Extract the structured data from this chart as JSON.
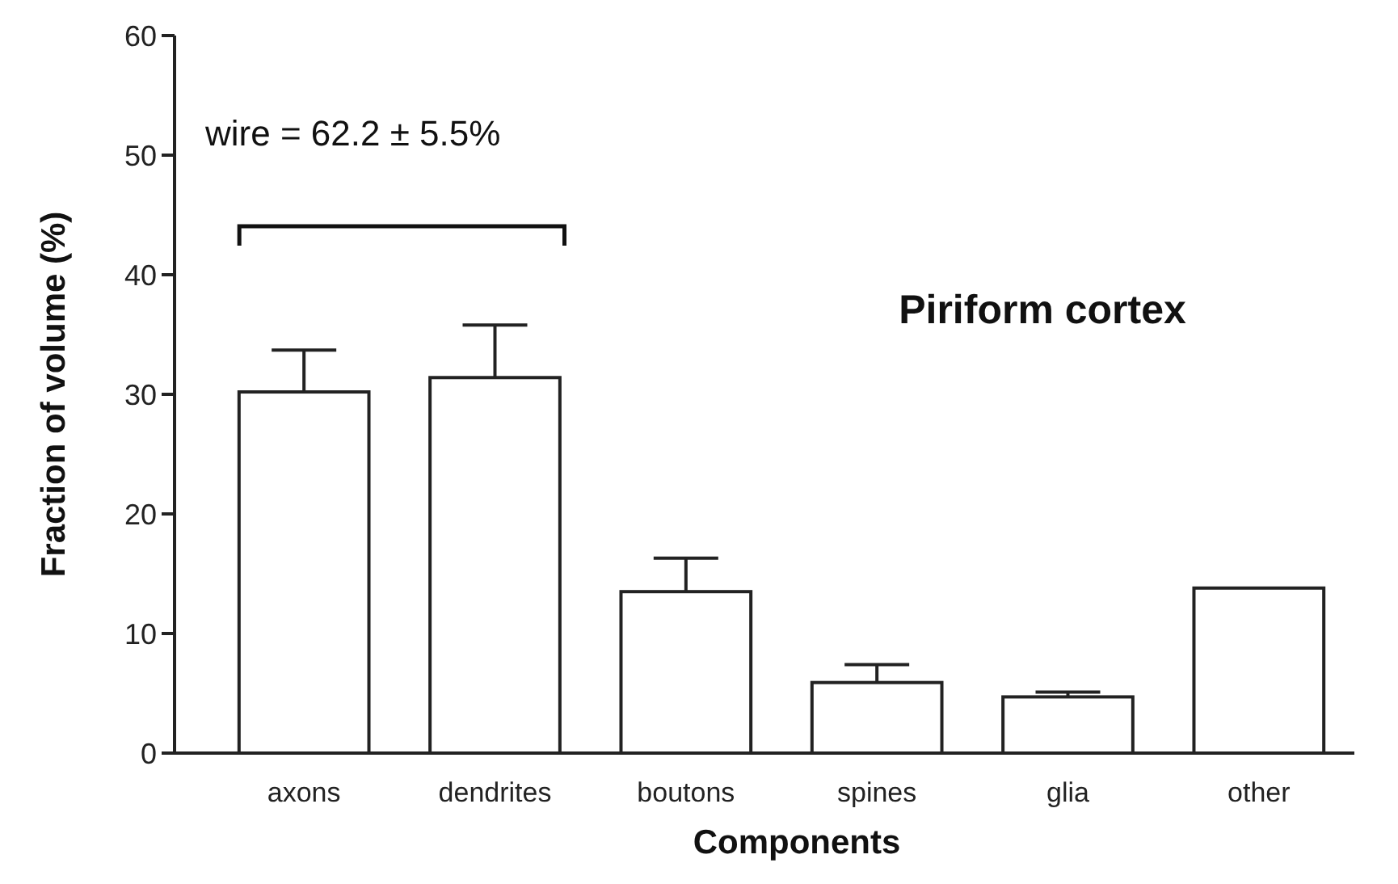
{
  "chart_data": {
    "type": "bar",
    "title": "Piriform cortex",
    "xlabel": "Components",
    "ylabel": "Fraction of volume (%)",
    "annotations": [
      "wire = 62.2 ± 5.5%"
    ],
    "categories": [
      "axons",
      "dendrites",
      "boutons",
      "spines",
      "glia",
      "other"
    ],
    "values": [
      30.2,
      31.4,
      13.5,
      5.9,
      4.7,
      13.8
    ],
    "errors": [
      3.5,
      4.4,
      2.8,
      1.5,
      0.4,
      null
    ],
    "color": "#ffffff",
    "ylim": [
      0,
      60
    ],
    "yticks": [
      0,
      10,
      20,
      30,
      40,
      50,
      60
    ],
    "grid": false
  }
}
